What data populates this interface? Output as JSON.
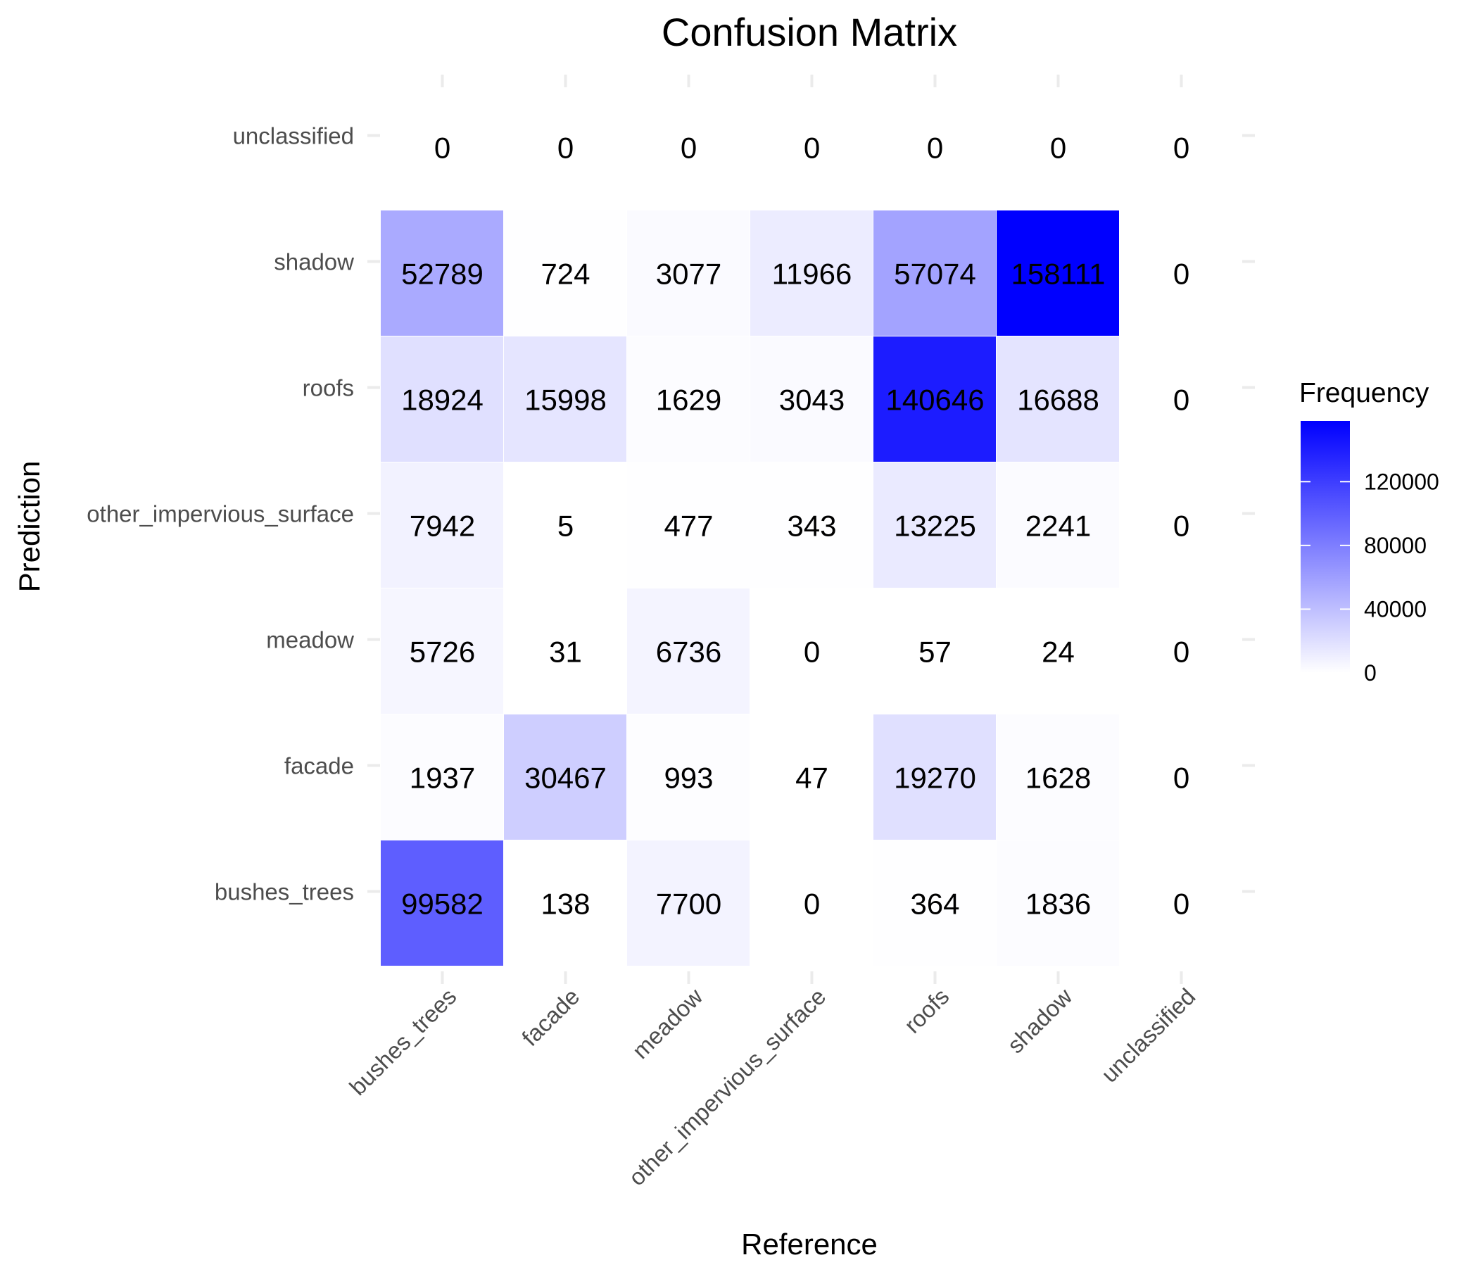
{
  "chart_data": {
    "type": "heatmap",
    "title": "Confusion Matrix",
    "xlabel": "Reference",
    "ylabel": "Prediction",
    "x_categories": [
      "bushes_trees",
      "facade",
      "meadow",
      "other_impervious_surface",
      "roofs",
      "shadow",
      "unclassified"
    ],
    "y_categories": [
      "unclassified",
      "shadow",
      "roofs",
      "other_impervious_surface",
      "meadow",
      "facade",
      "bushes_trees"
    ],
    "values": [
      [
        0,
        0,
        0,
        0,
        0,
        0,
        0
      ],
      [
        52789,
        724,
        3077,
        11966,
        57074,
        158111,
        0
      ],
      [
        18924,
        15998,
        1629,
        3043,
        140646,
        16688,
        0
      ],
      [
        7942,
        5,
        477,
        343,
        13225,
        2241,
        0
      ],
      [
        5726,
        31,
        6736,
        0,
        57,
        24,
        0
      ],
      [
        1937,
        30467,
        993,
        47,
        19270,
        1628,
        0
      ],
      [
        99582,
        138,
        7700,
        0,
        364,
        1836,
        0
      ]
    ],
    "legend": {
      "title": "Frequency",
      "placement": "right",
      "ticks": [
        0,
        40000,
        80000,
        120000
      ],
      "range": [
        0,
        158111
      ],
      "colors": {
        "low": "#ffffff",
        "high": "#0000ff"
      }
    },
    "grid": false
  }
}
